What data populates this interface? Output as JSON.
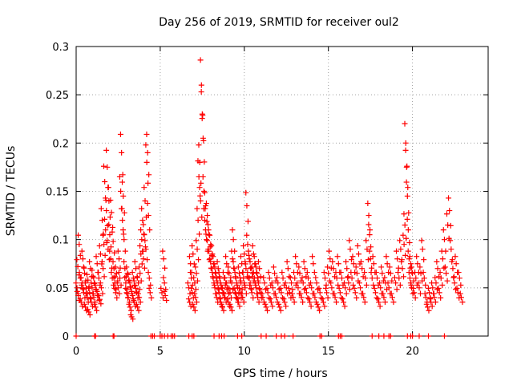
{
  "chart_data": {
    "type": "scatter",
    "title": "Day 256 of 2019, SRMTID for receiver oul2",
    "xlabel": "GPS time / hours",
    "ylabel": "SRMTID / TECUs",
    "xlim": [
      0,
      24.5
    ],
    "ylim": [
      0,
      0.3
    ],
    "x_ticks": [
      0,
      5,
      10,
      15,
      20
    ],
    "x_tick_labels": [
      "0",
      "5",
      "10",
      "15",
      "20"
    ],
    "y_ticks": [
      0,
      0.05,
      0.1,
      0.15,
      0.2,
      0.25,
      0.3
    ],
    "y_tick_labels": [
      "0",
      "0.05",
      "0.1",
      "0.15",
      "0.2",
      "0.25",
      "0.3"
    ],
    "grid": true,
    "marker": "+",
    "marker_color": "#ff0000",
    "series": [
      {
        "name": "SRMTID",
        "points": [
          [
            0.05,
            0.05
          ],
          [
            0.1,
            0.072
          ],
          [
            0.12,
            0.042
          ],
          [
            0.18,
            0.095
          ],
          [
            0.25,
            0.06
          ],
          [
            0.3,
            0.035
          ],
          [
            0.35,
            0.055
          ],
          [
            0.4,
            0.08
          ],
          [
            0.45,
            0.045
          ],
          [
            0.5,
            0.065
          ],
          [
            0.55,
            0.03
          ],
          [
            0.6,
            0.05
          ],
          [
            0.65,
            0.04
          ],
          [
            0.7,
            0.058
          ],
          [
            0.75,
            0.025
          ],
          [
            0.8,
            0.045
          ],
          [
            0.85,
            0.07
          ],
          [
            0.9,
            0.035
          ],
          [
            0.95,
            0.05
          ],
          [
            1.0,
            0.062
          ],
          [
            1.05,
            0.04
          ],
          [
            1.1,
            0.055
          ],
          [
            1.15,
            0.03
          ],
          [
            1.2,
            0.048
          ],
          [
            1.25,
            0.075
          ],
          [
            1.3,
            0.042
          ],
          [
            1.35,
            0.06
          ],
          [
            1.4,
            0.038
          ],
          [
            1.45,
            0.085
          ],
          [
            1.5,
            0.05
          ],
          [
            1.55,
            0.12
          ],
          [
            1.6,
            0.07
          ],
          [
            1.65,
            0.095
          ],
          [
            1.7,
            0.16
          ],
          [
            1.75,
            0.11
          ],
          [
            1.8,
            0.13
          ],
          [
            1.85,
            0.175
          ],
          [
            1.9,
            0.09
          ],
          [
            1.95,
            0.14
          ],
          [
            2.0,
            0.105
          ],
          [
            2.05,
            0.08
          ],
          [
            2.1,
            0.128
          ],
          [
            2.15,
            0.06
          ],
          [
            2.2,
            0.098
          ],
          [
            2.25,
            0.07
          ],
          [
            2.3,
            0.055
          ],
          [
            2.35,
            0.045
          ],
          [
            2.4,
            0.065
          ],
          [
            2.5,
            0.05
          ],
          [
            2.55,
            0.08
          ],
          [
            2.6,
            0.06
          ],
          [
            2.65,
            0.15
          ],
          [
            2.7,
            0.19
          ],
          [
            2.75,
            0.12
          ],
          [
            2.8,
            0.145
          ],
          [
            2.85,
            0.1
          ],
          [
            2.9,
            0.07
          ],
          [
            2.95,
            0.055
          ],
          [
            3.0,
            0.045
          ],
          [
            3.05,
            0.065
          ],
          [
            3.1,
            0.04
          ],
          [
            3.15,
            0.058
          ],
          [
            3.2,
            0.03
          ],
          [
            3.25,
            0.05
          ],
          [
            3.3,
            0.02
          ],
          [
            3.35,
            0.042
          ],
          [
            3.4,
            0.06
          ],
          [
            3.45,
            0.035
          ],
          [
            3.5,
            0.052
          ],
          [
            3.55,
            0.07
          ],
          [
            3.6,
            0.045
          ],
          [
            3.65,
            0.03
          ],
          [
            3.7,
            0.055
          ],
          [
            3.75,
            0.04
          ],
          [
            3.8,
            0.065
          ],
          [
            3.85,
            0.085
          ],
          [
            3.9,
            0.1
          ],
          [
            3.95,
            0.12
          ],
          [
            4.0,
            0.08
          ],
          [
            4.05,
            0.105
          ],
          [
            4.1,
            0.14
          ],
          [
            4.15,
            0.09
          ],
          [
            4.2,
            0.18
          ],
          [
            4.25,
            0.19
          ],
          [
            4.3,
            0.125
          ],
          [
            4.35,
            0.06
          ],
          [
            4.4,
            0.045
          ],
          [
            5.1,
            0.045
          ],
          [
            5.2,
            0.08
          ],
          [
            5.25,
            0.055
          ],
          [
            5.3,
            0.042
          ],
          [
            6.7,
            0.05
          ],
          [
            6.75,
            0.035
          ],
          [
            6.8,
            0.075
          ],
          [
            6.85,
            0.06
          ],
          [
            6.9,
            0.045
          ],
          [
            6.95,
            0.085
          ],
          [
            7.0,
            0.03
          ],
          [
            7.05,
            0.055
          ],
          [
            7.1,
            0.04
          ],
          [
            7.15,
            0.065
          ],
          [
            7.2,
            0.09
          ],
          [
            7.25,
            0.12
          ],
          [
            7.3,
            0.165
          ],
          [
            7.35,
            0.18
          ],
          [
            7.4,
            0.14
          ],
          [
            7.45,
            0.26
          ],
          [
            7.5,
            0.23
          ],
          [
            7.55,
            0.205
          ],
          [
            7.6,
            0.15
          ],
          [
            7.65,
            0.12
          ],
          [
            7.7,
            0.135
          ],
          [
            7.75,
            0.1
          ],
          [
            7.8,
            0.125
          ],
          [
            7.85,
            0.09
          ],
          [
            7.9,
            0.105
          ],
          [
            7.95,
            0.08
          ],
          [
            8.0,
            0.095
          ],
          [
            8.05,
            0.07
          ],
          [
            8.1,
            0.085
          ],
          [
            8.15,
            0.06
          ],
          [
            8.2,
            0.075
          ],
          [
            8.25,
            0.05
          ],
          [
            8.3,
            0.065
          ],
          [
            8.35,
            0.04
          ],
          [
            8.4,
            0.055
          ],
          [
            8.45,
            0.07
          ],
          [
            8.5,
            0.045
          ],
          [
            8.55,
            0.06
          ],
          [
            8.6,
            0.035
          ],
          [
            8.65,
            0.05
          ],
          [
            8.7,
            0.03
          ],
          [
            8.75,
            0.045
          ],
          [
            8.8,
            0.06
          ],
          [
            8.85,
            0.04
          ],
          [
            8.9,
            0.055
          ],
          [
            8.95,
            0.075
          ],
          [
            9.0,
            0.05
          ],
          [
            9.05,
            0.035
          ],
          [
            9.1,
            0.065
          ],
          [
            9.15,
            0.045
          ],
          [
            9.2,
            0.03
          ],
          [
            9.25,
            0.055
          ],
          [
            9.3,
            0.08
          ],
          [
            9.35,
            0.1
          ],
          [
            9.4,
            0.07
          ],
          [
            9.45,
            0.045
          ],
          [
            9.5,
            0.06
          ],
          [
            9.55,
            0.04
          ],
          [
            9.6,
            0.05
          ],
          [
            9.65,
            0.035
          ],
          [
            9.7,
            0.065
          ],
          [
            9.75,
            0.045
          ],
          [
            9.8,
            0.055
          ],
          [
            9.85,
            0.075
          ],
          [
            9.9,
            0.04
          ],
          [
            9.95,
            0.06
          ],
          [
            10.0,
            0.085
          ],
          [
            10.05,
            0.05
          ],
          [
            10.1,
            0.07
          ],
          [
            10.15,
            0.135
          ],
          [
            10.2,
            0.095
          ],
          [
            10.25,
            0.06
          ],
          [
            10.3,
            0.08
          ],
          [
            10.35,
            0.055
          ],
          [
            10.4,
            0.07
          ],
          [
            10.45,
            0.045
          ],
          [
            10.5,
            0.065
          ],
          [
            10.55,
            0.085
          ],
          [
            10.6,
            0.06
          ],
          [
            10.65,
            0.075
          ],
          [
            10.7,
            0.05
          ],
          [
            10.75,
            0.065
          ],
          [
            10.8,
            0.04
          ],
          [
            10.85,
            0.055
          ],
          [
            10.9,
            0.07
          ],
          [
            10.95,
            0.045
          ],
          [
            11.1,
            0.04
          ],
          [
            11.2,
            0.055
          ],
          [
            11.3,
            0.03
          ],
          [
            11.4,
            0.045
          ],
          [
            11.5,
            0.06
          ],
          [
            11.6,
            0.035
          ],
          [
            11.7,
            0.05
          ],
          [
            11.8,
            0.065
          ],
          [
            11.9,
            0.04
          ],
          [
            12.0,
            0.055
          ],
          [
            12.1,
            0.03
          ],
          [
            12.2,
            0.045
          ],
          [
            12.3,
            0.06
          ],
          [
            12.4,
            0.035
          ],
          [
            12.5,
            0.05
          ],
          [
            12.6,
            0.07
          ],
          [
            12.7,
            0.045
          ],
          [
            12.8,
            0.055
          ],
          [
            12.9,
            0.04
          ],
          [
            13.0,
            0.06
          ],
          [
            13.1,
            0.075
          ],
          [
            13.2,
            0.05
          ],
          [
            13.3,
            0.065
          ],
          [
            13.4,
            0.04
          ],
          [
            13.5,
            0.055
          ],
          [
            13.6,
            0.07
          ],
          [
            13.7,
            0.045
          ],
          [
            13.8,
            0.06
          ],
          [
            13.9,
            0.035
          ],
          [
            14.0,
            0.05
          ],
          [
            14.1,
            0.075
          ],
          [
            14.2,
            0.04
          ],
          [
            14.3,
            0.055
          ],
          [
            14.4,
            0.03
          ],
          [
            14.5,
            0.045
          ],
          [
            14.7,
            0.035
          ],
          [
            14.8,
            0.06
          ],
          [
            14.9,
            0.045
          ],
          [
            15.0,
            0.065
          ],
          [
            15.1,
            0.08
          ],
          [
            15.2,
            0.05
          ],
          [
            15.3,
            0.07
          ],
          [
            15.4,
            0.04
          ],
          [
            15.5,
            0.06
          ],
          [
            15.6,
            0.075
          ],
          [
            15.7,
            0.045
          ],
          [
            15.8,
            0.06
          ],
          [
            15.9,
            0.035
          ],
          [
            16.0,
            0.05
          ],
          [
            16.1,
            0.07
          ],
          [
            16.2,
            0.055
          ],
          [
            16.3,
            0.09
          ],
          [
            16.4,
            0.06
          ],
          [
            16.5,
            0.075
          ],
          [
            16.6,
            0.045
          ],
          [
            16.7,
            0.065
          ],
          [
            16.8,
            0.085
          ],
          [
            16.9,
            0.05
          ],
          [
            17.0,
            0.07
          ],
          [
            17.1,
            0.04
          ],
          [
            17.2,
            0.06
          ],
          [
            17.3,
            0.09
          ],
          [
            17.4,
            0.125
          ],
          [
            17.45,
            0.105
          ],
          [
            17.5,
            0.08
          ],
          [
            17.6,
            0.06
          ],
          [
            17.7,
            0.075
          ],
          [
            17.8,
            0.045
          ],
          [
            17.9,
            0.06
          ],
          [
            18.0,
            0.035
          ],
          [
            18.1,
            0.05
          ],
          [
            18.2,
            0.065
          ],
          [
            18.3,
            0.04
          ],
          [
            18.4,
            0.055
          ],
          [
            18.5,
            0.075
          ],
          [
            18.6,
            0.05
          ],
          [
            18.7,
            0.065
          ],
          [
            18.8,
            0.04
          ],
          [
            19.0,
            0.055
          ],
          [
            19.1,
            0.08
          ],
          [
            19.2,
            0.06
          ],
          [
            19.3,
            0.09
          ],
          [
            19.4,
            0.07
          ],
          [
            19.5,
            0.095
          ],
          [
            19.55,
            0.115
          ],
          [
            19.6,
            0.2
          ],
          [
            19.65,
            0.175
          ],
          [
            19.7,
            0.145
          ],
          [
            19.75,
            0.11
          ],
          [
            19.8,
            0.08
          ],
          [
            19.85,
            0.06
          ],
          [
            19.9,
            0.075
          ],
          [
            19.95,
            0.05
          ],
          [
            20.0,
            0.065
          ],
          [
            20.1,
            0.045
          ],
          [
            20.2,
            0.06
          ],
          [
            20.3,
            0.075
          ],
          [
            20.4,
            0.05
          ],
          [
            20.5,
            0.065
          ],
          [
            20.6,
            0.09
          ],
          [
            20.7,
            0.06
          ],
          [
            20.8,
            0.04
          ],
          [
            20.9,
            0.03
          ],
          [
            21.0,
            0.045
          ],
          [
            21.1,
            0.035
          ],
          [
            21.2,
            0.05
          ],
          [
            21.3,
            0.04
          ],
          [
            21.4,
            0.055
          ],
          [
            21.5,
            0.07
          ],
          [
            21.6,
            0.045
          ],
          [
            21.7,
            0.06
          ],
          [
            21.8,
            0.08
          ],
          [
            21.9,
            0.1
          ],
          [
            22.0,
            0.065
          ],
          [
            22.1,
            0.115
          ],
          [
            22.2,
            0.13
          ],
          [
            22.3,
            0.09
          ],
          [
            22.4,
            0.07
          ],
          [
            22.5,
            0.055
          ],
          [
            22.6,
            0.075
          ],
          [
            22.7,
            0.045
          ],
          [
            22.8,
            0.06
          ],
          [
            22.9,
            0.04
          ]
        ]
      }
    ],
    "zero_points_x": [
      0.0,
      1.1,
      1.15,
      2.2,
      2.25,
      4.45,
      4.55,
      4.65,
      5.0,
      5.1,
      5.25,
      5.45,
      5.65,
      5.75,
      5.85,
      6.7,
      6.9,
      7.0,
      8.2,
      8.5,
      8.65,
      8.8,
      9.6,
      9.85,
      11.0,
      11.3,
      11.9,
      12.2,
      12.4,
      12.9,
      14.5,
      14.6,
      15.6,
      15.7,
      15.8,
      17.6,
      18.0,
      18.3,
      18.6,
      18.7,
      19.7,
      19.9,
      20.0,
      20.4,
      20.95,
      21.9
    ]
  }
}
